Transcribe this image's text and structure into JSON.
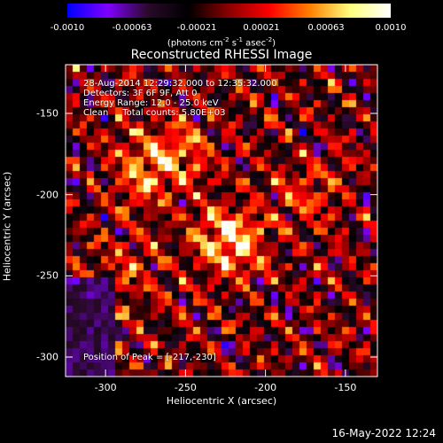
{
  "chart_data": {
    "type": "heatmap",
    "title": "Reconstructed RHESSI Image",
    "xlabel": "Heliocentric X (arcsec)",
    "ylabel": "Heliocentric Y (arcsec)",
    "xlim": [
      -325,
      -130
    ],
    "ylim": [
      -312,
      -120
    ],
    "x_ticks": [
      "-300",
      "-250",
      "-200",
      "-150"
    ],
    "x_tick_values": [
      -300,
      -250,
      -200,
      -150
    ],
    "y_ticks": [
      "-150",
      "-200",
      "-250",
      "-300"
    ],
    "y_tick_values": [
      -150,
      -200,
      -250,
      -300
    ],
    "colorbar": {
      "ticks": [
        "-0.0010",
        "-0.00063",
        "-0.00021",
        "0.00021",
        "0.00063",
        "0.0010"
      ],
      "range": [
        -0.001,
        0.001
      ],
      "unit_label": "(photons cm",
      "unit_exp1": "-2",
      "unit_mid": " s",
      "unit_exp2": "-1",
      "unit_tail": " asec",
      "unit_exp3": "-2",
      "unit_close": ")",
      "colormap": [
        "#0000ff",
        "#8000ff",
        "#2a0a2a",
        "#000000",
        "#8b0000",
        "#ff0000",
        "#ff8000",
        "#ffff80",
        "#ffffff"
      ]
    },
    "annotations": {
      "time_range": "28-Aug-2014 12:29:32.000 to 12:35:32.000",
      "detectors": "Detectors: 3F 6F 9F, Att 0",
      "energy": "Energy Range: 12.0 - 25.0 keV",
      "clean": "Clean     Total counts: 5.80E+03",
      "peak": "Position of Peak = [-217,-230]"
    },
    "peak": {
      "x": -217,
      "y": -230
    },
    "sources": [
      {
        "x": -222,
        "y": -228,
        "strength": 1.0
      },
      {
        "x": -275,
        "y": -185,
        "strength": 0.65
      },
      {
        "x": -250,
        "y": -175,
        "strength": 0.45
      },
      {
        "x": -175,
        "y": -200,
        "strength": 0.4
      },
      {
        "x": -285,
        "y": -250,
        "strength": 0.35
      }
    ]
  },
  "footer": {
    "date": "16-May-2022 12:24"
  }
}
